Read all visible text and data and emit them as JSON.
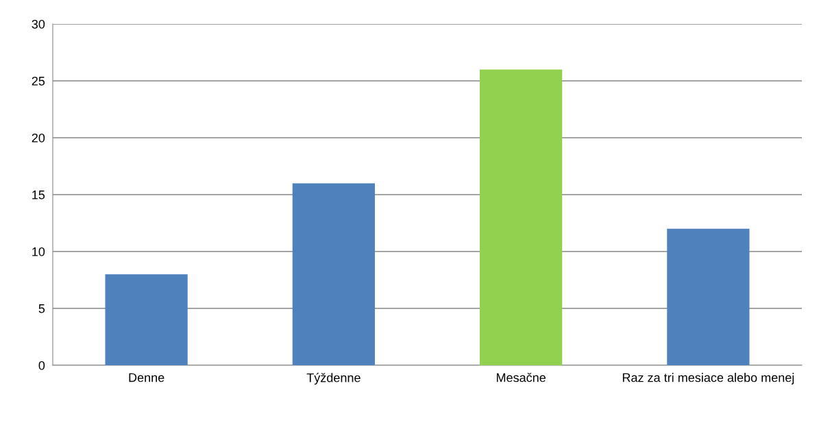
{
  "chart_data": {
    "type": "bar",
    "categories": [
      "Denne",
      "Týždenne",
      "Mesačne",
      "Raz za tri mesiace alebo menej"
    ],
    "values": [
      8,
      16,
      26,
      12
    ],
    "colors": [
      "#4f81bd",
      "#4f81bd",
      "#92d050",
      "#4f81bd"
    ],
    "ylim": [
      0,
      30
    ],
    "yticks": [
      0,
      5,
      10,
      15,
      20,
      25,
      30
    ],
    "grid": "y",
    "legend": false
  }
}
